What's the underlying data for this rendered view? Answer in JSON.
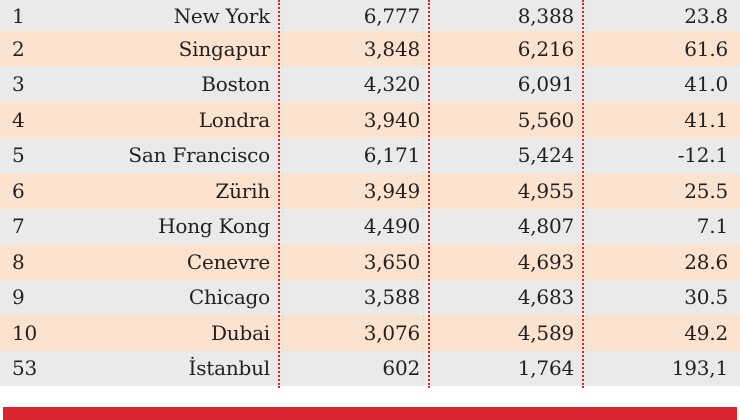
{
  "table": {
    "rows": [
      {
        "rank": "1",
        "city": "New York",
        "v1": "6,777",
        "v2": "8,388",
        "v3": "23.8"
      },
      {
        "rank": "2",
        "city": "Singapur",
        "v1": "3,848",
        "v2": "6,216",
        "v3": "61.6"
      },
      {
        "rank": "3",
        "city": "Boston",
        "v1": "4,320",
        "v2": "6,091",
        "v3": "41.0"
      },
      {
        "rank": "4",
        "city": "Londra",
        "v1": "3,940",
        "v2": "5,560",
        "v3": "41.1"
      },
      {
        "rank": "5",
        "city": "San Francisco",
        "v1": "6,171",
        "v2": "5,424",
        "v3": "-12.1"
      },
      {
        "rank": "6",
        "city": "Zürih",
        "v1": "3,949",
        "v2": "4,955",
        "v3": "25.5"
      },
      {
        "rank": "7",
        "city": "Hong Kong",
        "v1": "4,490",
        "v2": "4,807",
        "v3": "7.1"
      },
      {
        "rank": "8",
        "city": "Cenevre",
        "v1": "3,650",
        "v2": "4,693",
        "v3": "28.6"
      },
      {
        "rank": "9",
        "city": "Chicago",
        "v1": "3,588",
        "v2": "4,683",
        "v3": "30.5"
      },
      {
        "rank": "10",
        "city": "Dubai",
        "v1": "3,076",
        "v2": "4,589",
        "v3": "49.2"
      },
      {
        "rank": "53",
        "city": "İstanbul",
        "v1": "602",
        "v2": "1,764",
        "v3": "193,1"
      }
    ]
  },
  "banner": {
    "text": "",
    "color": "#d9262f"
  },
  "colors": {
    "row_alt": "#fbe3cf",
    "row_plain": "#eaeaea",
    "divider": "#d7262f"
  }
}
